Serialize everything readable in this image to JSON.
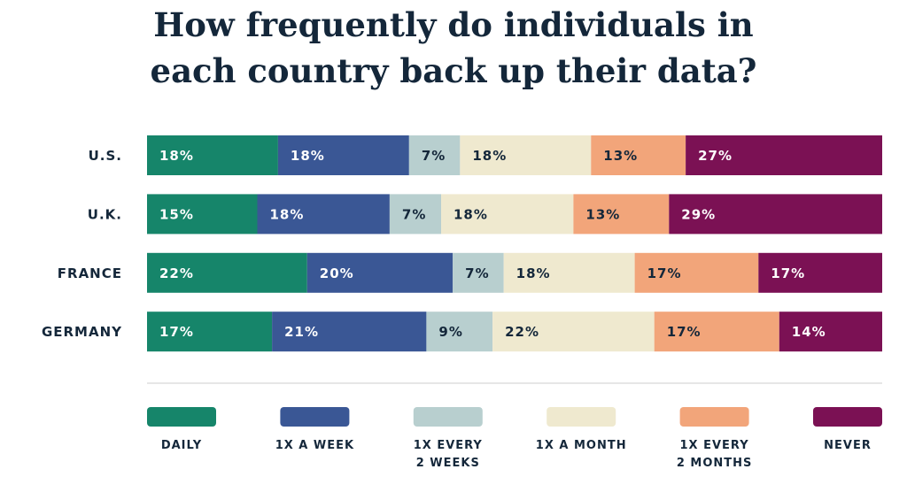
{
  "chart_data": {
    "type": "stacked-bar-horizontal",
    "title": "How frequently do individuals in\neach country back up their data?",
    "categories": [
      "U.S.",
      "U.K.",
      "FRANCE",
      "GERMANY"
    ],
    "series": [
      {
        "name": "DAILY",
        "color": "#16856a",
        "values": [
          18,
          15,
          22,
          17
        ],
        "value_labels": [
          "18%",
          "15%",
          "22%",
          "17%"
        ]
      },
      {
        "name": "1X A WEEK",
        "color": "#3a5795",
        "values": [
          18,
          18,
          20,
          21
        ],
        "value_labels": [
          "18%",
          "18%",
          "20%",
          "21%"
        ]
      },
      {
        "name": "1X EVERY\n2 WEEKS",
        "color": "#b8cfcf",
        "values": [
          7,
          7,
          7,
          9
        ],
        "value_labels": [
          "7%",
          "7%",
          "7%",
          "9%"
        ]
      },
      {
        "name": "1X A MONTH",
        "color": "#efe9cf",
        "values": [
          18,
          18,
          18,
          22
        ],
        "value_labels": [
          "18%",
          "18%",
          "18%",
          "22%"
        ]
      },
      {
        "name": "1X EVERY\n2 MONTHS",
        "color": "#f2a57a",
        "values": [
          13,
          13,
          17,
          17
        ],
        "value_labels": [
          "13%",
          "13%",
          "17%",
          "17%"
        ]
      },
      {
        "name": "NEVER",
        "color": "#7b1154",
        "values": [
          27,
          29,
          17,
          14
        ],
        "value_labels": [
          "27%",
          "29%",
          "17%",
          "14%"
        ]
      }
    ]
  }
}
